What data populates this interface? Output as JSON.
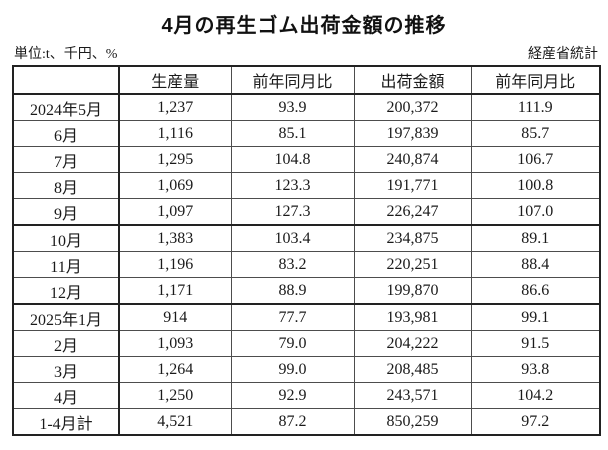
{
  "title": "4月の再生ゴム出荷金額の推移",
  "unit_note": "単位:t、千円、%",
  "source_note": "経産省統計",
  "table": {
    "headers": [
      "",
      "生産量",
      "前年同月比",
      "出荷金額",
      "前年同月比"
    ],
    "rows": [
      {
        "cells": [
          "2024年5月",
          "1,237",
          "93.9",
          "200,372",
          "111.9"
        ],
        "thick_top": false
      },
      {
        "cells": [
          "6月",
          "1,116",
          "85.1",
          "197,839",
          "85.7"
        ],
        "thick_top": false
      },
      {
        "cells": [
          "7月",
          "1,295",
          "104.8",
          "240,874",
          "106.7"
        ],
        "thick_top": false
      },
      {
        "cells": [
          "8月",
          "1,069",
          "123.3",
          "191,771",
          "100.8"
        ],
        "thick_top": false
      },
      {
        "cells": [
          "9月",
          "1,097",
          "127.3",
          "226,247",
          "107.0"
        ],
        "thick_top": false
      },
      {
        "cells": [
          "10月",
          "1,383",
          "103.4",
          "234,875",
          "89.1"
        ],
        "thick_top": true
      },
      {
        "cells": [
          "11月",
          "1,196",
          "83.2",
          "220,251",
          "88.4"
        ],
        "thick_top": false
      },
      {
        "cells": [
          "12月",
          "1,171",
          "88.9",
          "199,870",
          "86.6"
        ],
        "thick_top": false
      },
      {
        "cells": [
          "2025年1月",
          "914",
          "77.7",
          "193,981",
          "99.1"
        ],
        "thick_top": true
      },
      {
        "cells": [
          "2月",
          "1,093",
          "79.0",
          "204,222",
          "91.5"
        ],
        "thick_top": false
      },
      {
        "cells": [
          "3月",
          "1,264",
          "99.0",
          "208,485",
          "93.8"
        ],
        "thick_top": false
      },
      {
        "cells": [
          "4月",
          "1,250",
          "92.9",
          "243,571",
          "104.2"
        ],
        "thick_top": false
      },
      {
        "cells": [
          "1-4月計",
          "4,521",
          "87.2",
          "850,259",
          "97.2"
        ],
        "thick_top": false
      }
    ]
  }
}
